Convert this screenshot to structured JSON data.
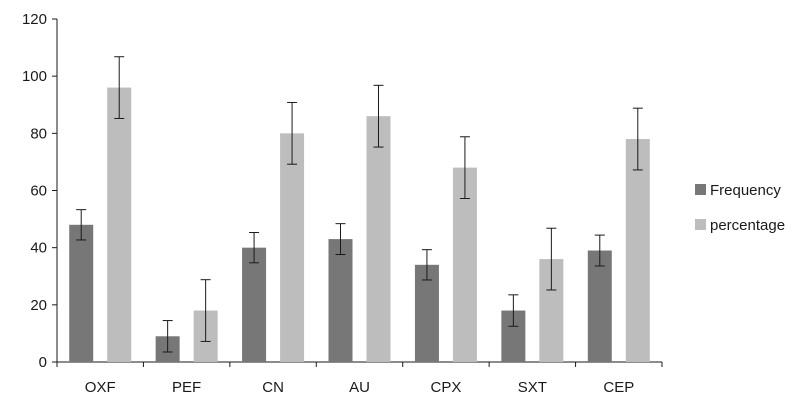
{
  "chart_data": {
    "type": "bar",
    "title": "",
    "xlabel": "",
    "ylabel": "",
    "ylim": [
      0,
      120
    ],
    "yticks": [
      0,
      20,
      40,
      60,
      80,
      100,
      120
    ],
    "grid": false,
    "legend_position": "right",
    "categories": [
      "OXF",
      "PEF",
      "CN",
      "AU",
      "CPX",
      "SXT",
      "CEP"
    ],
    "series": [
      {
        "name": "Frequency",
        "color": "#777777",
        "values": [
          48,
          9,
          40,
          43,
          34,
          18,
          39
        ],
        "error": [
          5.3,
          5.5,
          5.3,
          5.4,
          5.3,
          5.5,
          5.4
        ]
      },
      {
        "name": "percentage",
        "color": "#bdbdbd",
        "values": [
          96,
          18,
          80,
          86,
          68,
          36,
          78
        ],
        "error": [
          10.8,
          10.8,
          10.8,
          10.8,
          10.8,
          10.8,
          10.8
        ]
      }
    ]
  }
}
